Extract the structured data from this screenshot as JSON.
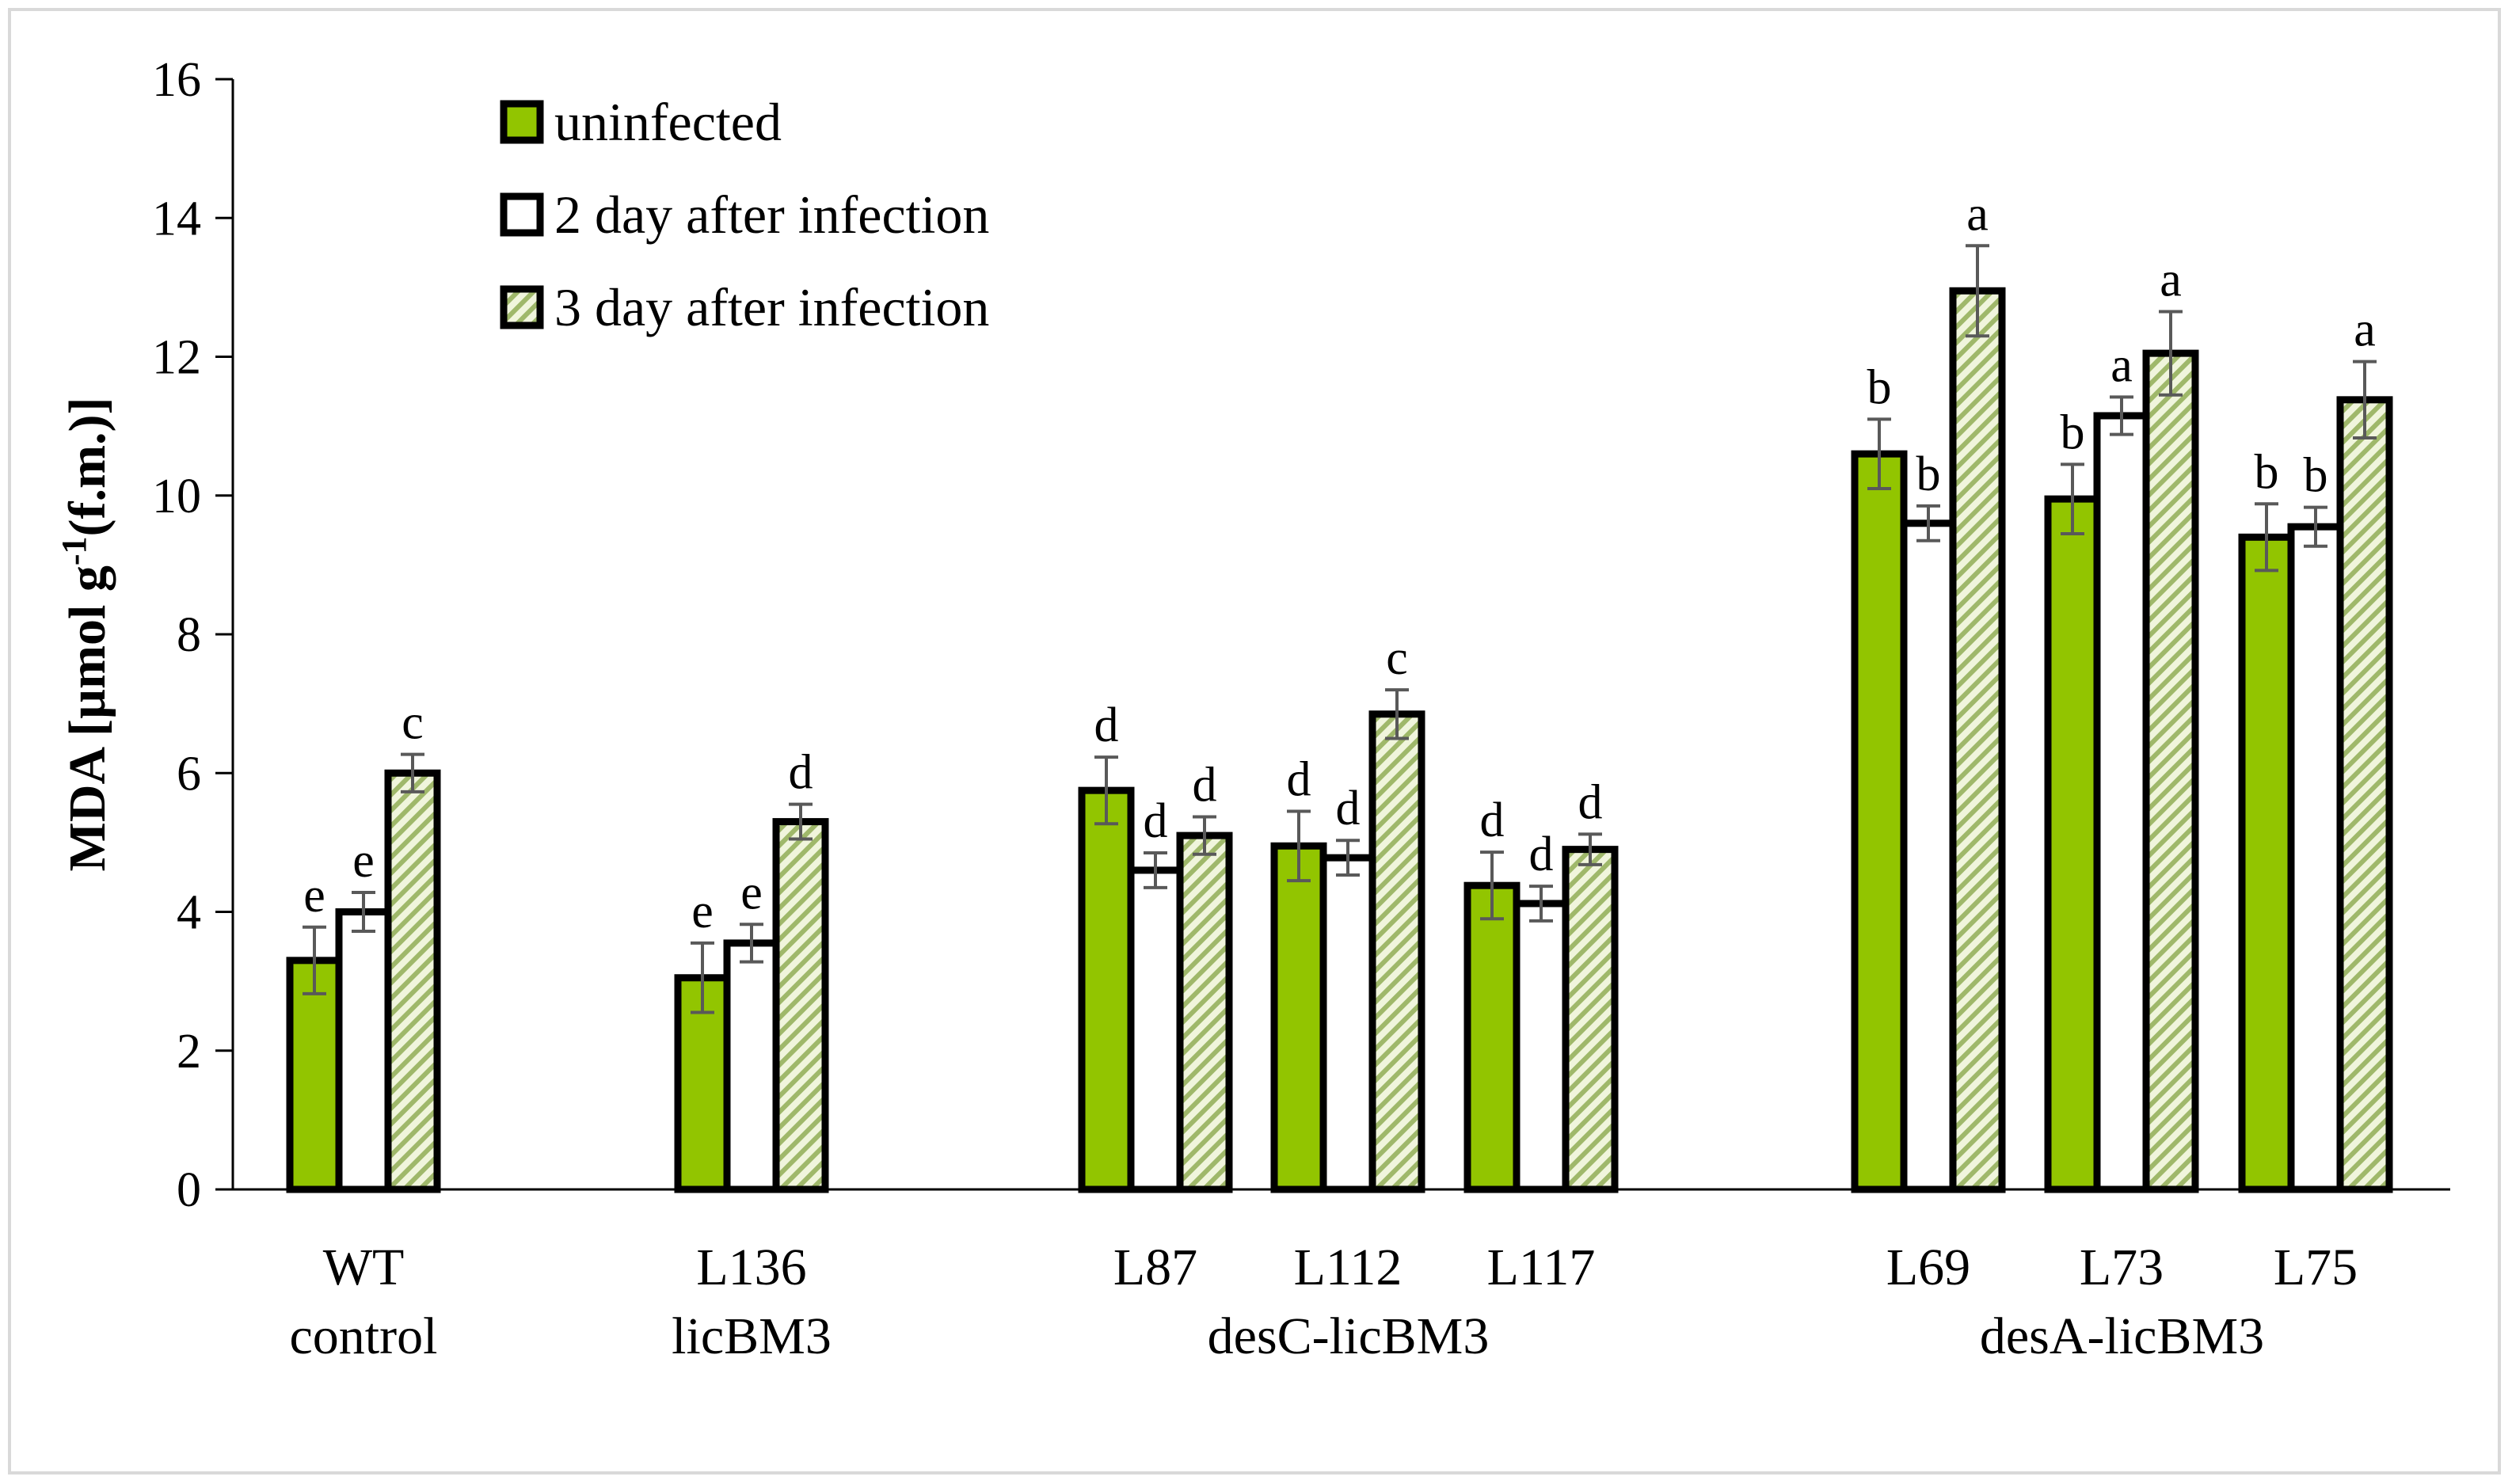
{
  "chart_data": {
    "type": "bar",
    "title": "",
    "xlabel": "",
    "ylabel": "MDA [µmol g-1(f.m.)]",
    "ylabel_parts": {
      "prefix": "MDA [µmol g",
      "sup": "-1",
      "suffix": "(f.m.)]"
    },
    "ylim": [
      0,
      16
    ],
    "yticks": [
      0,
      2,
      4,
      6,
      8,
      10,
      12,
      14,
      16
    ],
    "legend_position": "top-left",
    "series": [
      {
        "name": "uninfected",
        "color": "#92c500",
        "pattern": "solid-green"
      },
      {
        "name": "2 day after infection",
        "color": "#ffffff",
        "pattern": "solid-white"
      },
      {
        "name": "3 day after infection",
        "color": "#d9e8b0",
        "pattern": "diagonal-hatch"
      }
    ],
    "groups": [
      {
        "label": "WT",
        "values": [
          3.3,
          4.0,
          6.0
        ],
        "errors": [
          0.48,
          0.28,
          0.27
        ],
        "letters": [
          "e",
          "e",
          "c"
        ]
      },
      {
        "label": "L136",
        "values": [
          3.05,
          3.55,
          5.3
        ],
        "errors": [
          0.5,
          0.27,
          0.25
        ],
        "letters": [
          "e",
          "e",
          "d"
        ]
      },
      {
        "label": "L87",
        "values": [
          5.75,
          4.6,
          5.1
        ],
        "errors": [
          0.48,
          0.25,
          0.27
        ],
        "letters": [
          "d",
          "d",
          "d"
        ]
      },
      {
        "label": "L112",
        "values": [
          4.95,
          4.78,
          6.85
        ],
        "errors": [
          0.5,
          0.25,
          0.35
        ],
        "letters": [
          "d",
          "d",
          "c"
        ]
      },
      {
        "label": "L117",
        "values": [
          4.38,
          4.12,
          4.9
        ],
        "errors": [
          0.48,
          0.25,
          0.22
        ],
        "letters": [
          "d",
          "d",
          "d"
        ]
      },
      {
        "label": "L69",
        "values": [
          10.6,
          9.6,
          12.95
        ],
        "errors": [
          0.5,
          0.25,
          0.65
        ],
        "letters": [
          "b",
          "b",
          "a"
        ]
      },
      {
        "label": "L73",
        "values": [
          9.95,
          11.15,
          12.05
        ],
        "errors": [
          0.5,
          0.27,
          0.6
        ],
        "letters": [
          "b",
          "a",
          "a"
        ]
      },
      {
        "label": "L75",
        "values": [
          9.4,
          9.55,
          11.38
        ],
        "errors": [
          0.48,
          0.28,
          0.55
        ],
        "letters": [
          "b",
          "b",
          "a"
        ]
      }
    ],
    "group_labels": [
      {
        "text": "control",
        "groups": [
          "WT"
        ]
      },
      {
        "text": "licBM3",
        "groups": [
          "L136"
        ]
      },
      {
        "text": "desC-licBM3",
        "groups": [
          "L87",
          "L112",
          "L117"
        ]
      },
      {
        "text": "desA-licBM3",
        "groups": [
          "L69",
          "L73",
          "L75"
        ]
      }
    ]
  }
}
